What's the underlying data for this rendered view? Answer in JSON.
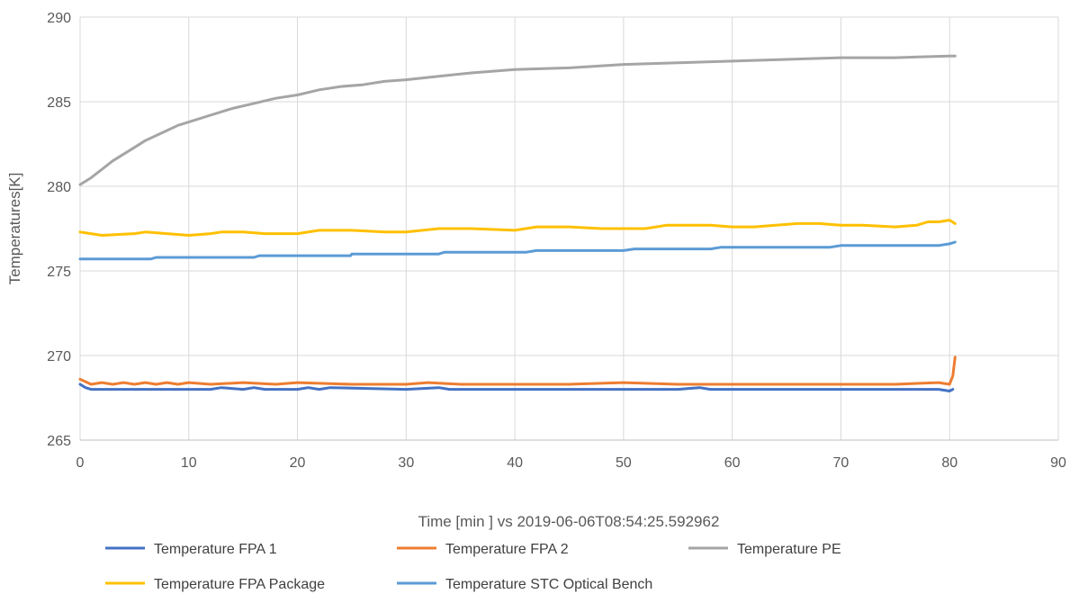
{
  "chart_data": {
    "type": "line",
    "title": "",
    "xlabel": "Time [min ] vs  2019-06-06T08:54:25.592962",
    "ylabel": "Temperatures[K]",
    "xlim": [
      0,
      90
    ],
    "ylim": [
      265,
      290
    ],
    "x_ticks": [
      0,
      10,
      20,
      30,
      40,
      50,
      60,
      70,
      80,
      90
    ],
    "y_ticks": [
      265,
      270,
      275,
      280,
      285,
      290
    ],
    "grid": true,
    "legend_position": "bottom",
    "series": [
      {
        "name": "Temperature FPA 1",
        "color": "#4472c4",
        "x": [
          0,
          0.5,
          1,
          2,
          5,
          10,
          12,
          13,
          15,
          16,
          17,
          20,
          21,
          22,
          23,
          30,
          33,
          34,
          40,
          50,
          55,
          57,
          58,
          60,
          70,
          79,
          80,
          80.3
        ],
        "y": [
          268.3,
          268.1,
          268.0,
          268.0,
          268.0,
          268.0,
          268.0,
          268.1,
          268.0,
          268.1,
          268.0,
          268.0,
          268.1,
          268.0,
          268.1,
          268.0,
          268.1,
          268.0,
          268.0,
          268.0,
          268.0,
          268.1,
          268.0,
          268.0,
          268.0,
          268.0,
          267.9,
          268.0
        ]
      },
      {
        "name": "Temperature FPA 2",
        "color": "#ed7d31",
        "x": [
          0,
          1,
          2,
          3,
          4,
          5,
          6,
          7,
          8,
          9,
          10,
          12,
          15,
          18,
          20,
          25,
          30,
          32,
          35,
          40,
          45,
          50,
          55,
          60,
          65,
          70,
          75,
          79,
          80,
          80.3,
          80.5
        ],
        "y": [
          268.6,
          268.3,
          268.4,
          268.3,
          268.4,
          268.3,
          268.4,
          268.3,
          268.4,
          268.3,
          268.4,
          268.3,
          268.4,
          268.3,
          268.4,
          268.3,
          268.3,
          268.4,
          268.3,
          268.3,
          268.3,
          268.4,
          268.3,
          268.3,
          268.3,
          268.3,
          268.3,
          268.4,
          268.3,
          268.8,
          269.9
        ]
      },
      {
        "name": "Temperature PE",
        "color": "#a5a5a5",
        "x": [
          0,
          1,
          2,
          3,
          4,
          5,
          6,
          7,
          8,
          9,
          10,
          12,
          14,
          16,
          18,
          20,
          22,
          24,
          26,
          28,
          30,
          33,
          36,
          40,
          45,
          50,
          55,
          60,
          65,
          70,
          75,
          80,
          80.5
        ],
        "y": [
          280.1,
          280.5,
          281.0,
          281.5,
          281.9,
          282.3,
          282.7,
          283.0,
          283.3,
          283.6,
          283.8,
          284.2,
          284.6,
          284.9,
          285.2,
          285.4,
          285.7,
          285.9,
          286.0,
          286.2,
          286.3,
          286.5,
          286.7,
          286.9,
          287.0,
          287.2,
          287.3,
          287.4,
          287.5,
          287.6,
          287.6,
          287.7,
          287.7
        ]
      },
      {
        "name": "Temperature FPA Package",
        "color": "#ffc000",
        "x": [
          0,
          1,
          2,
          5,
          6,
          8,
          10,
          12,
          13,
          15,
          17,
          20,
          22,
          25,
          28,
          30,
          33,
          36,
          40,
          42,
          45,
          48,
          50,
          52,
          54,
          58,
          60,
          62,
          64,
          66,
          68,
          70,
          72,
          75,
          77,
          78,
          79,
          80,
          80.5
        ],
        "y": [
          277.3,
          277.2,
          277.1,
          277.2,
          277.3,
          277.2,
          277.1,
          277.2,
          277.3,
          277.3,
          277.2,
          277.2,
          277.4,
          277.4,
          277.3,
          277.3,
          277.5,
          277.5,
          277.4,
          277.6,
          277.6,
          277.5,
          277.5,
          277.5,
          277.7,
          277.7,
          277.6,
          277.6,
          277.7,
          277.8,
          277.8,
          277.7,
          277.7,
          277.6,
          277.7,
          277.9,
          277.9,
          278.0,
          277.8
        ]
      },
      {
        "name": "Temperature STC Optical Bench",
        "color": "#5b9bd5",
        "x": [
          0,
          5,
          6.5,
          7,
          10,
          16,
          16.5,
          17,
          24.9,
          25,
          26,
          33,
          33.5,
          34,
          41,
          42,
          50,
          51,
          58,
          59,
          60,
          69,
          70,
          71,
          79,
          80,
          80.5
        ],
        "y": [
          275.7,
          275.7,
          275.7,
          275.8,
          275.8,
          275.8,
          275.9,
          275.9,
          275.9,
          276.0,
          276.0,
          276.0,
          276.1,
          276.1,
          276.1,
          276.2,
          276.2,
          276.3,
          276.3,
          276.4,
          276.4,
          276.4,
          276.5,
          276.5,
          276.5,
          276.6,
          276.7
        ]
      }
    ]
  }
}
